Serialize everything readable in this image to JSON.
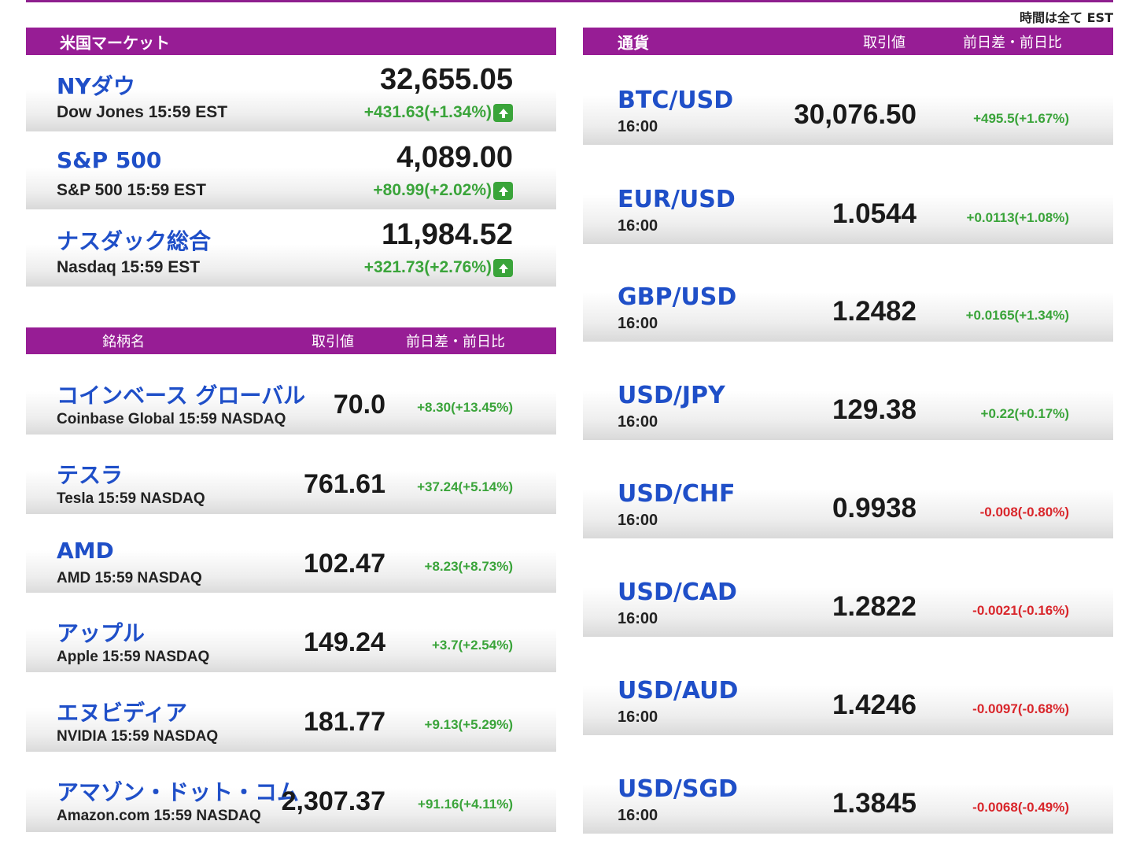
{
  "page": {
    "tz_note": "時間は全て EST"
  },
  "us_market": {
    "header": "米国マーケット",
    "indices": [
      {
        "name": "NYダウ",
        "sub": "Dow Jones 15:59 EST",
        "value": "32,655.05",
        "change": "+431.63(+1.34%)",
        "direction": "up"
      },
      {
        "name": "S&P 500",
        "sub": "S&P 500 15:59 EST",
        "value": "4,089.00",
        "change": "+80.99(+2.02%)",
        "direction": "up"
      },
      {
        "name": "ナスダック総合",
        "sub": "Nasdaq 15:59 EST",
        "value": "11,984.52",
        "change": "+321.73(+2.76%)",
        "direction": "up"
      }
    ]
  },
  "stocks": {
    "header_name": "銘柄名",
    "header_value": "取引値",
    "header_change": "前日差・前日比",
    "rows": [
      {
        "name": "コインベース グローバル",
        "sub": "Coinbase Global 15:59  NASDAQ",
        "value": "70.0",
        "change": "+8.30(+13.45%)",
        "direction": "up"
      },
      {
        "name": "テスラ",
        "sub": "Tesla 15:59  NASDAQ",
        "value": "761.61",
        "change": "+37.24(+5.14%)",
        "direction": "up"
      },
      {
        "name": "AMD",
        "sub": "AMD 15:59  NASDAQ",
        "value": "102.47",
        "change": "+8.23(+8.73%)",
        "direction": "up"
      },
      {
        "name": "アップル",
        "sub": "Apple 15:59  NASDAQ",
        "value": "149.24",
        "change": "+3.7(+2.54%)",
        "direction": "up"
      },
      {
        "name": "エヌビディア",
        "sub": "NVIDIA 15:59  NASDAQ",
        "value": "181.77",
        "change": "+9.13(+5.29%)",
        "direction": "up"
      },
      {
        "name": "アマゾン・ドット・コム",
        "sub": "Amazon.com 15:59  NASDAQ",
        "value": "2,307.37",
        "change": "+91.16(+4.11%)",
        "direction": "up"
      }
    ]
  },
  "currency": {
    "header_name": "通貨",
    "header_value": "取引値",
    "header_change": "前日差・前日比",
    "rows": [
      {
        "name": "BTC/USD",
        "sub": "16:00",
        "value": "30,076.50",
        "change": "+495.5(+1.67%)",
        "direction": "up"
      },
      {
        "name": "EUR/USD",
        "sub": "16:00",
        "value": "1.0544",
        "change": "+0.0113(+1.08%)",
        "direction": "up"
      },
      {
        "name": "GBP/USD",
        "sub": "16:00",
        "value": "1.2482",
        "change": "+0.0165(+1.34%)",
        "direction": "up"
      },
      {
        "name": "USD/JPY",
        "sub": "16:00",
        "value": "129.38",
        "change": "+0.22(+0.17%)",
        "direction": "up"
      },
      {
        "name": "USD/CHF",
        "sub": "16:00",
        "value": "0.9938",
        "change": "-0.008(-0.80%)",
        "direction": "down"
      },
      {
        "name": "USD/CAD",
        "sub": "16:00",
        "value": "1.2822",
        "change": "-0.0021(-0.16%)",
        "direction": "down"
      },
      {
        "name": "USD/AUD",
        "sub": "16:00",
        "value": "1.4246",
        "change": "-0.0097(-0.68%)",
        "direction": "down"
      },
      {
        "name": "USD/SGD",
        "sub": "16:00",
        "value": "1.3845",
        "change": "-0.0068(-0.49%)",
        "direction": "down"
      }
    ]
  },
  "colors": {
    "header_bar": "#971d95",
    "name_blue": "#1f4fc8",
    "up_green": "#3aa43a",
    "down_red": "#d9262b"
  },
  "icons": {
    "index_change_arrow": "up-arrow-icon"
  }
}
